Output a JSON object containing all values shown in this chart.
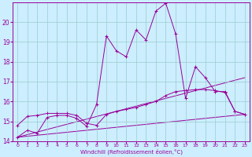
{
  "bg_color": "#cceeff",
  "grid_color": "#99cccc",
  "line_color": "#990099",
  "xlabel": "Windchill (Refroidissement éolien,°C)",
  "xlim": [
    -0.5,
    23.5
  ],
  "ylim": [
    14,
    21
  ],
  "yticks": [
    14,
    15,
    16,
    17,
    18,
    19,
    20
  ],
  "xticks": [
    0,
    1,
    2,
    3,
    4,
    5,
    6,
    7,
    8,
    9,
    10,
    11,
    12,
    13,
    14,
    15,
    16,
    17,
    18,
    19,
    20,
    21,
    22,
    23
  ],
  "series_main_x": [
    0,
    1,
    2,
    3,
    4,
    5,
    6,
    7,
    8,
    9,
    10,
    11,
    12,
    13,
    14,
    15,
    16,
    17,
    18,
    19,
    20,
    21,
    22,
    23
  ],
  "series_main_y": [
    14.2,
    14.55,
    14.4,
    15.2,
    15.3,
    15.3,
    15.15,
    14.75,
    15.85,
    19.3,
    18.55,
    18.25,
    19.6,
    19.1,
    20.55,
    20.95,
    19.4,
    16.15,
    17.75,
    17.2,
    16.5,
    16.5,
    15.5,
    15.35
  ],
  "series_smooth_x": [
    0,
    1,
    2,
    3,
    4,
    5,
    6,
    7,
    8,
    9,
    10,
    11,
    12,
    13,
    14,
    15,
    16,
    17,
    18,
    19,
    20,
    21,
    22,
    23
  ],
  "series_smooth_y": [
    14.8,
    15.25,
    15.3,
    15.4,
    15.4,
    15.4,
    15.3,
    14.9,
    14.8,
    15.35,
    15.5,
    15.6,
    15.7,
    15.85,
    16.0,
    16.3,
    16.5,
    16.55,
    16.6,
    16.6,
    16.55,
    16.45,
    15.5,
    15.35
  ],
  "line1_x": [
    0,
    23
  ],
  "line1_y": [
    14.2,
    15.35
  ],
  "line2_x": [
    0,
    23
  ],
  "line2_y": [
    14.2,
    17.2
  ]
}
